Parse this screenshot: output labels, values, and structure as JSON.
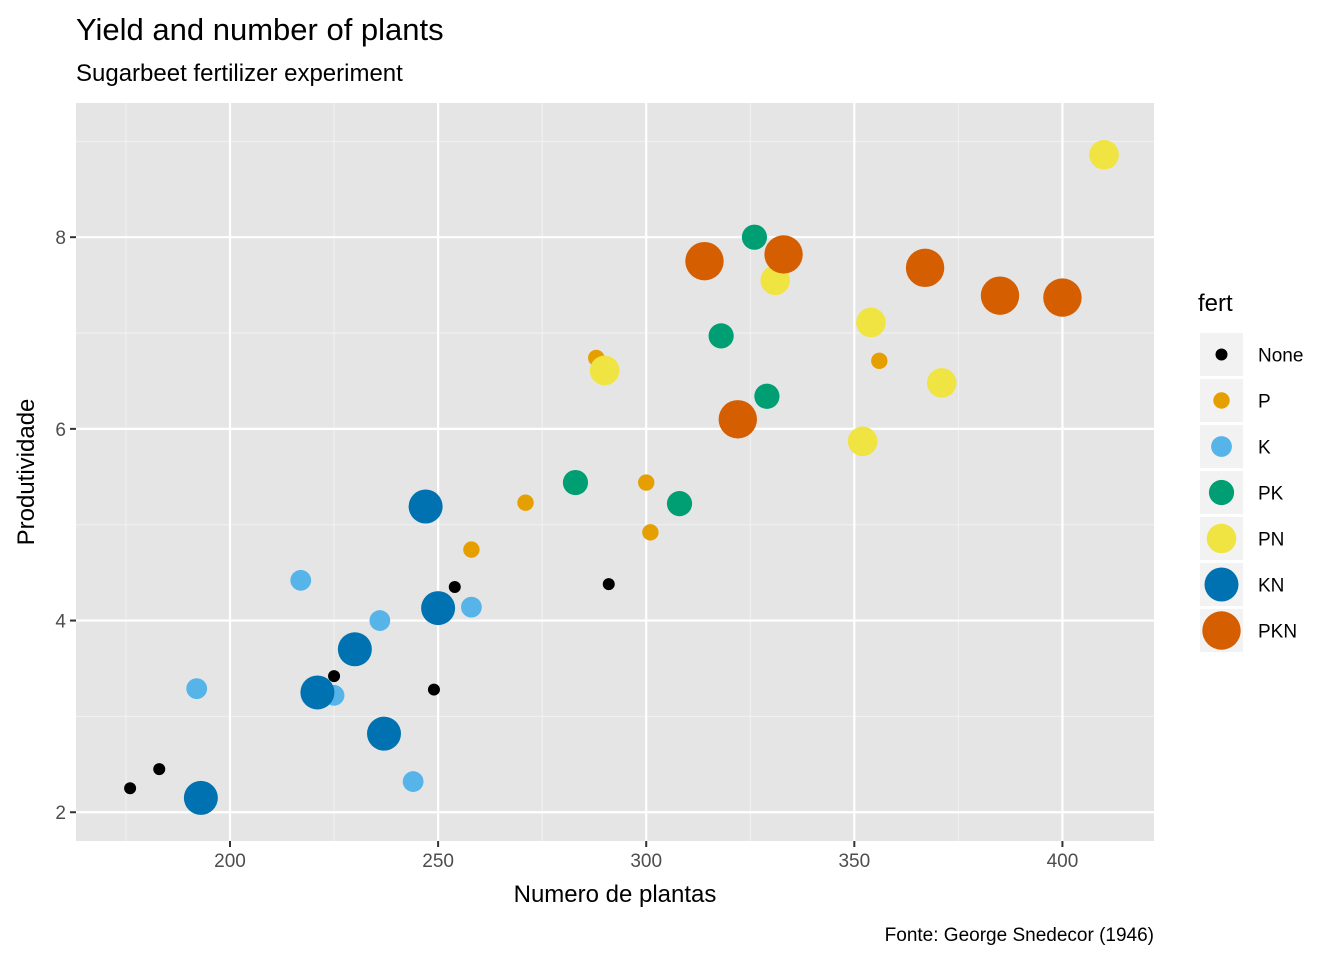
{
  "chart_data": {
    "type": "scatter",
    "title": "Yield and number of plants",
    "subtitle": "Sugarbeet fertilizer experiment",
    "xlabel": "Numero de plantas",
    "ylabel": "Produtividade",
    "caption": "Fonte: George Snedecor (1946)",
    "xlim": [
      163,
      422
    ],
    "ylim": [
      1.7,
      9.4
    ],
    "xticks": [
      200,
      250,
      300,
      350,
      400
    ],
    "yticks": [
      2,
      4,
      6,
      8
    ],
    "xtick_labels": [
      "200",
      "250",
      "300",
      "350",
      "400"
    ],
    "ytick_labels": [
      "2",
      "4",
      "6",
      "8"
    ],
    "grid": true,
    "background": "#e5e5e5",
    "legend": {
      "title": "fert",
      "position": "right"
    },
    "series": [
      {
        "name": "None",
        "color": "#000000",
        "size": 1,
        "points": [
          {
            "x": 176,
            "y": 2.25
          },
          {
            "x": 183,
            "y": 2.45
          },
          {
            "x": 225,
            "y": 3.42
          },
          {
            "x": 249,
            "y": 3.28
          },
          {
            "x": 254,
            "y": 4.35
          },
          {
            "x": 291,
            "y": 4.38
          }
        ]
      },
      {
        "name": "P",
        "color": "#E69F00",
        "size": 2,
        "points": [
          {
            "x": 258,
            "y": 4.74
          },
          {
            "x": 271,
            "y": 5.23
          },
          {
            "x": 288,
            "y": 6.74
          },
          {
            "x": 300,
            "y": 5.44
          },
          {
            "x": 301,
            "y": 4.92
          },
          {
            "x": 356,
            "y": 6.71
          }
        ]
      },
      {
        "name": "K",
        "color": "#56B4E9",
        "size": 3,
        "points": [
          {
            "x": 192,
            "y": 3.29
          },
          {
            "x": 217,
            "y": 4.42
          },
          {
            "x": 225,
            "y": 3.22
          },
          {
            "x": 236,
            "y": 4.0
          },
          {
            "x": 244,
            "y": 2.32
          },
          {
            "x": 258,
            "y": 4.14
          }
        ]
      },
      {
        "name": "PK",
        "color": "#009E73",
        "size": 4,
        "points": [
          {
            "x": 283,
            "y": 5.44
          },
          {
            "x": 308,
            "y": 5.22
          },
          {
            "x": 318,
            "y": 6.97
          },
          {
            "x": 326,
            "y": 8.0
          },
          {
            "x": 329,
            "y": 6.34
          }
        ]
      },
      {
        "name": "PN",
        "color": "#F0E442",
        "size": 5,
        "points": [
          {
            "x": 290,
            "y": 6.61
          },
          {
            "x": 331,
            "y": 7.55
          },
          {
            "x": 352,
            "y": 5.87
          },
          {
            "x": 354,
            "y": 7.11
          },
          {
            "x": 371,
            "y": 6.48
          },
          {
            "x": 410,
            "y": 8.86
          }
        ]
      },
      {
        "name": "KN",
        "color": "#0072B2",
        "size": 6,
        "points": [
          {
            "x": 193,
            "y": 2.15
          },
          {
            "x": 221,
            "y": 3.25
          },
          {
            "x": 230,
            "y": 3.7
          },
          {
            "x": 237,
            "y": 2.82
          },
          {
            "x": 247,
            "y": 5.19
          },
          {
            "x": 250,
            "y": 4.13
          }
        ]
      },
      {
        "name": "PKN",
        "color": "#D55E00",
        "size": 7,
        "points": [
          {
            "x": 314,
            "y": 7.75
          },
          {
            "x": 322,
            "y": 6.1
          },
          {
            "x": 333,
            "y": 7.82
          },
          {
            "x": 367,
            "y": 7.68
          },
          {
            "x": 385,
            "y": 7.39
          },
          {
            "x": 400,
            "y": 7.37
          }
        ]
      }
    ]
  }
}
